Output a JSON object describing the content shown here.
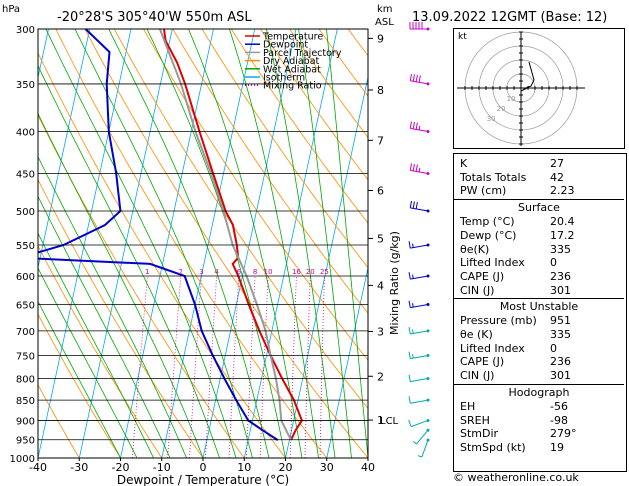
{
  "header": {
    "location": "-20°28'S  305°40'W  550m  ASL",
    "datetime": "13.09.2022  12GMT  (Base: 12)",
    "hpa_label": "hPa",
    "km_label": "km",
    "asl_label": "ASL"
  },
  "copyright": "© weatheronline.co.uk",
  "chart_data": {
    "type": "line",
    "subtype": "skew-T log-p",
    "xlabel": "Dewpoint / Temperature (°C)",
    "ylabel": "hPa",
    "y_right_label": "Mixing Ratio (g/kg)",
    "xlim": [
      -40,
      40
    ],
    "ylim": [
      1000,
      300
    ],
    "y_scale": "log",
    "x_ticks": [
      -40,
      -30,
      -20,
      -10,
      0,
      10,
      20,
      30,
      40
    ],
    "pressure_levels": [
      300,
      350,
      400,
      450,
      500,
      550,
      600,
      650,
      700,
      750,
      800,
      850,
      900,
      950,
      1000
    ],
    "km_ticks": [
      {
        "label": "9",
        "p": 308
      },
      {
        "label": "8",
        "p": 356
      },
      {
        "label": "7",
        "p": 410
      },
      {
        "label": "6",
        "p": 472
      },
      {
        "label": "5",
        "p": 540
      },
      {
        "label": "4",
        "p": 616
      },
      {
        "label": "3",
        "p": 701
      },
      {
        "label": "2",
        "p": 795
      },
      {
        "label": "1",
        "p": 899
      }
    ],
    "lcl_label": "LCL",
    "lcl_p": 899,
    "mixing_ratio_labels": [
      {
        "label": "1",
        "p": 600
      },
      {
        "label": "2",
        "p": 600
      },
      {
        "label": "3",
        "p": 600
      },
      {
        "label": "4",
        "p": 600
      },
      {
        "label": "6",
        "p": 600
      },
      {
        "label": "8",
        "p": 600
      },
      {
        "label": "10",
        "p": 600
      },
      {
        "label": "16",
        "p": 600
      },
      {
        "label": "20",
        "p": 600
      },
      {
        "label": "25",
        "p": 600
      }
    ],
    "mixing_ratio_values": [
      1,
      2,
      3,
      4,
      6,
      8,
      10,
      16,
      20,
      25
    ],
    "legend": {
      "placement": "top-center",
      "entries": [
        {
          "name": "Temperature",
          "color": "#dd0000"
        },
        {
          "name": "Dewpoint",
          "color": "#0000cc"
        },
        {
          "name": "Parcel Trajectory",
          "color": "#999999"
        },
        {
          "name": "Dry Adiabat",
          "color": "#ff8c00"
        },
        {
          "name": "Wet Adiabat",
          "color": "#00aa00"
        },
        {
          "name": "Isotherm",
          "color": "#00aaee"
        },
        {
          "name": "Mixing Ratio",
          "color": "#cc0099"
        }
      ]
    },
    "series": [
      {
        "name": "Temperature",
        "color": "#dd0000",
        "points": [
          [
            951,
            20.4
          ],
          [
            925,
            21
          ],
          [
            900,
            22
          ],
          [
            850,
            19
          ],
          [
            800,
            15
          ],
          [
            750,
            11
          ],
          [
            700,
            7
          ],
          [
            650,
            3
          ],
          [
            600,
            -1
          ],
          [
            580,
            -3
          ],
          [
            570,
            -2
          ],
          [
            550,
            -3
          ],
          [
            520,
            -5
          ],
          [
            500,
            -7.5
          ],
          [
            450,
            -12.5
          ],
          [
            400,
            -18
          ],
          [
            350,
            -24
          ],
          [
            330,
            -27
          ],
          [
            310,
            -31
          ],
          [
            300,
            -32
          ]
        ]
      },
      {
        "name": "Dewpoint",
        "color": "#0000cc",
        "points": [
          [
            951,
            17.2
          ],
          [
            925,
            13
          ],
          [
            900,
            9
          ],
          [
            850,
            5
          ],
          [
            800,
            1
          ],
          [
            750,
            -3
          ],
          [
            700,
            -7
          ],
          [
            650,
            -10
          ],
          [
            600,
            -14
          ],
          [
            580,
            -23
          ],
          [
            570,
            -55
          ],
          [
            560,
            -50
          ],
          [
            550,
            -45
          ],
          [
            520,
            -36
          ],
          [
            500,
            -33
          ],
          [
            450,
            -36
          ],
          [
            400,
            -40
          ],
          [
            350,
            -43
          ],
          [
            320,
            -44
          ],
          [
            300,
            -51
          ]
        ]
      },
      {
        "name": "Parcel Trajectory",
        "color": "#999999",
        "points": [
          [
            951,
            20.4
          ],
          [
            900,
            17
          ],
          [
            850,
            15.5
          ],
          [
            800,
            13.5
          ],
          [
            750,
            11
          ],
          [
            700,
            8.5
          ],
          [
            650,
            5
          ],
          [
            600,
            1
          ],
          [
            550,
            -4
          ],
          [
            500,
            -8
          ],
          [
            450,
            -13
          ],
          [
            400,
            -19
          ],
          [
            350,
            -25
          ],
          [
            300,
            -33
          ]
        ]
      }
    ],
    "wind_barbs": [
      {
        "p": 951,
        "dir": 200,
        "speed_kt": 5
      },
      {
        "p": 925,
        "dir": 220,
        "speed_kt": 5
      },
      {
        "p": 900,
        "dir": 250,
        "speed_kt": 10
      },
      {
        "p": 850,
        "dir": 260,
        "speed_kt": 10
      },
      {
        "p": 800,
        "dir": 260,
        "speed_kt": 10
      },
      {
        "p": 750,
        "dir": 260,
        "speed_kt": 15
      },
      {
        "p": 700,
        "dir": 260,
        "speed_kt": 15
      },
      {
        "p": 650,
        "dir": 260,
        "speed_kt": 15
      },
      {
        "p": 600,
        "dir": 260,
        "speed_kt": 15
      },
      {
        "p": 550,
        "dir": 260,
        "speed_kt": 15
      },
      {
        "p": 500,
        "dir": 280,
        "speed_kt": 30
      },
      {
        "p": 450,
        "dir": 280,
        "speed_kt": 35
      },
      {
        "p": 400,
        "dir": 280,
        "speed_kt": 35
      },
      {
        "p": 350,
        "dir": 280,
        "speed_kt": 40
      },
      {
        "p": 300,
        "dir": 270,
        "speed_kt": 50
      }
    ]
  },
  "hodograph": {
    "unit_label": "kt",
    "ring_labels": [
      "10",
      "20",
      "30"
    ]
  },
  "indices": {
    "top": [
      {
        "k": "K",
        "v": "27"
      },
      {
        "k": "Totals Totals",
        "v": "42"
      },
      {
        "k": "PW (cm)",
        "v": "2.23"
      }
    ],
    "surface_title": "Surface",
    "surface": [
      {
        "k": "Temp (°C)",
        "v": "20.4"
      },
      {
        "k": "Dewp (°C)",
        "v": "17.2"
      },
      {
        "k": "θe(K)",
        "v": "335"
      },
      {
        "k": "Lifted Index",
        "v": "0"
      },
      {
        "k": "CAPE (J)",
        "v": "236"
      },
      {
        "k": "CIN (J)",
        "v": "301"
      }
    ],
    "mu_title": "Most Unstable",
    "mu": [
      {
        "k": "Pressure (mb)",
        "v": "951"
      },
      {
        "k": "θe (K)",
        "v": "335"
      },
      {
        "k": "Lifted Index",
        "v": "0"
      },
      {
        "k": "CAPE (J)",
        "v": "236"
      },
      {
        "k": "CIN (J)",
        "v": "301"
      }
    ],
    "hodo_title": "Hodograph",
    "hodo": [
      {
        "k": "EH",
        "v": "-56"
      },
      {
        "k": "SREH",
        "v": "-98"
      },
      {
        "k": "StmDir",
        "v": "279°"
      },
      {
        "k": "StmSpd (kt)",
        "v": "19"
      }
    ]
  }
}
